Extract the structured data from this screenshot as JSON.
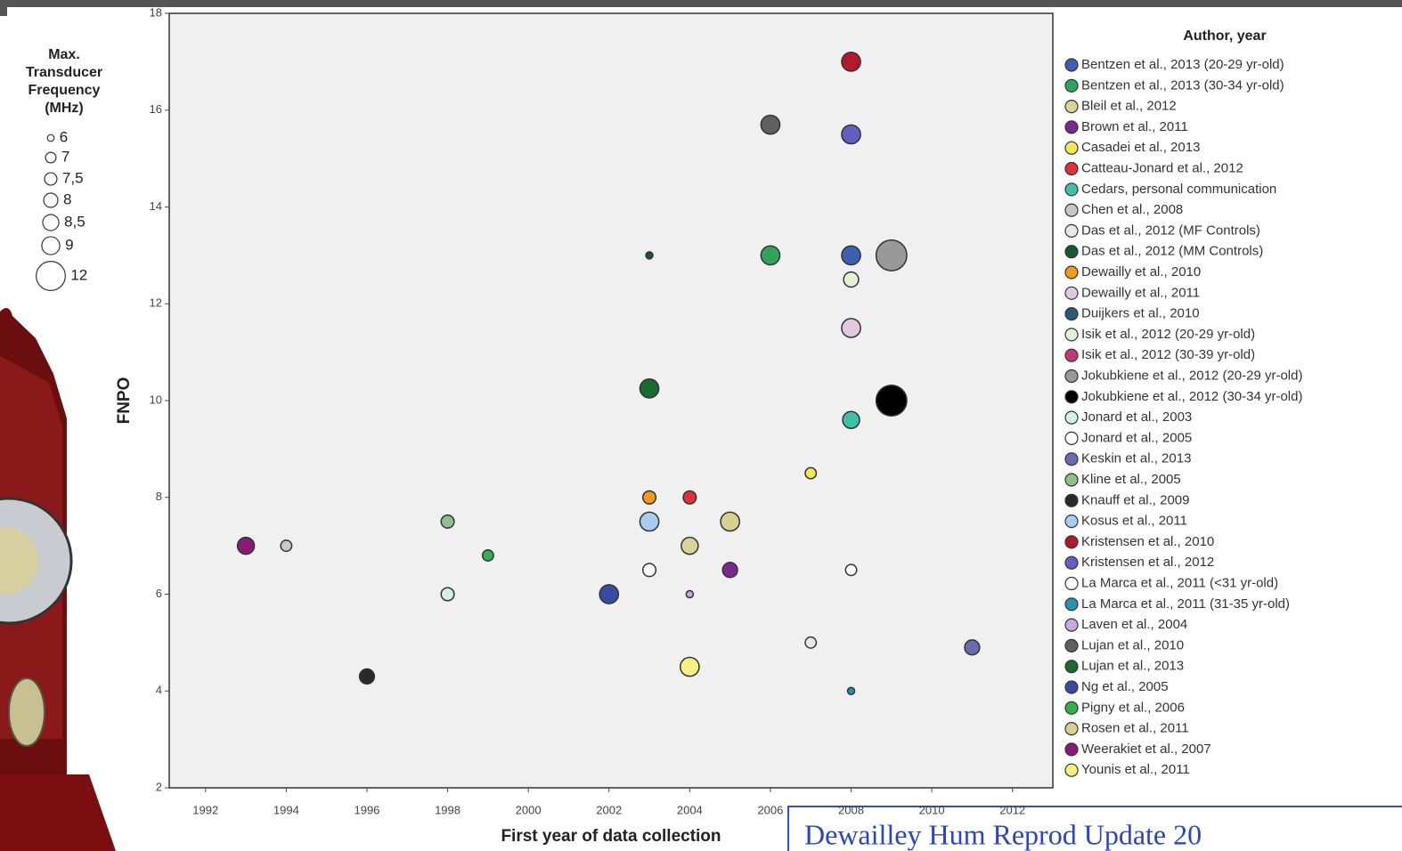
{
  "chart_data": {
    "type": "scatter",
    "x_label": "First year of data collection",
    "y_label": "FNPO",
    "xlim": [
      1991.1,
      2013
    ],
    "xticks": [
      1992,
      1994,
      1996,
      1998,
      2000,
      2002,
      2004,
      2006,
      2008,
      2010,
      2012
    ],
    "ylim": [
      2,
      18
    ],
    "yticks": [
      2,
      4,
      6,
      8,
      10,
      12,
      14,
      16,
      18
    ],
    "legend_title": "Author, year",
    "size_legend": {
      "title": [
        "Max.",
        "Transducer",
        "Frequency",
        "(MHz)"
      ],
      "values": [
        6,
        7,
        {
          "value": 7.5,
          "label": "7,5"
        },
        8,
        {
          "value": 8.5,
          "label": "8,5"
        },
        9,
        12
      ]
    },
    "series": [
      {
        "name": "Bentzen et al., 2013 (20-29 yr-old)",
        "color": "#3f5fb0",
        "x": [
          2008
        ],
        "y": [
          13
        ],
        "size": [
          9
        ]
      },
      {
        "name": "Bentzen et al., 2013 (30-34 yr-old)",
        "color": "#2fa35a",
        "x": [
          2006
        ],
        "y": [
          13
        ],
        "size": [
          9
        ]
      },
      {
        "name": "Bleil et al., 2012",
        "color": "#d9d49a",
        "x": [
          2004
        ],
        "y": [
          7
        ],
        "size": [
          8.5
        ]
      },
      {
        "name": "Brown et al., 2011",
        "color": "#7a2a8a",
        "x": [
          2005
        ],
        "y": [
          6.5
        ],
        "size": [
          8
        ]
      },
      {
        "name": "Casadei et al., 2013",
        "color": "#f2e85a",
        "x": [
          2007
        ],
        "y": [
          8.5
        ],
        "size": [
          7
        ]
      },
      {
        "name": "Catteau-Jonard et al., 2012",
        "color": "#e0303a",
        "x": [
          2004
        ],
        "y": [
          8
        ],
        "size": [
          7.5
        ]
      },
      {
        "name": "Cedars, personal communication",
        "color": "#40c0a8",
        "x": [
          2008
        ],
        "y": [
          9.6
        ],
        "size": [
          8.5
        ]
      },
      {
        "name": "Chen et al., 2008",
        "color": "#c8c8c8",
        "x": [
          1994
        ],
        "y": [
          7
        ],
        "size": [
          7
        ]
      },
      {
        "name": "Das et al., 2012 (MF Controls)",
        "color": "#e8e8e8",
        "x": [
          2007
        ],
        "y": [
          5
        ],
        "size": [
          7
        ]
      },
      {
        "name": "Das et al., 2012 (MM Controls)",
        "color": "#145a2a",
        "x": [
          2003
        ],
        "y": [
          13
        ],
        "size": [
          6
        ]
      },
      {
        "name": "Dewailly et al., 2010",
        "color": "#f09a20",
        "x": [
          2003
        ],
        "y": [
          8
        ],
        "size": [
          7.5
        ]
      },
      {
        "name": "Dewailly et al., 2011",
        "color": "#e0c8e0",
        "x": [
          2008
        ],
        "y": [
          11.5
        ],
        "size": [
          9
        ]
      },
      {
        "name": "Duijkers et al., 2010",
        "color": "#2a5a7a",
        "x": [],
        "y": [],
        "size": []
      },
      {
        "name": "Isik et al., 2012 (20-29 yr-old)",
        "color": "#e4f0d4",
        "x": [
          2008
        ],
        "y": [
          12.5
        ],
        "size": [
          8
        ]
      },
      {
        "name": "Isik et al., 2012 (30-39 yr-old)",
        "color": "#c03a7a",
        "x": [],
        "y": [],
        "size": []
      },
      {
        "name": "Jokubkiene et al., 2012 (20-29 yr-old)",
        "color": "#999999",
        "x": [
          2009
        ],
        "y": [
          13
        ],
        "size": [
          12
        ]
      },
      {
        "name": "Jokubkiene et al., 2012 (30-34 yr-old)",
        "color": "#000000",
        "x": [
          2009
        ],
        "y": [
          10
        ],
        "size": [
          12
        ]
      },
      {
        "name": "Jonard et al., 2003",
        "color": "#d0f0e8",
        "x": [
          1998
        ],
        "y": [
          6
        ],
        "size": [
          7.5
        ]
      },
      {
        "name": "Jonard et al., 2005",
        "color": "#ffffff",
        "x": [
          2003
        ],
        "y": [
          6.5
        ],
        "size": [
          7.5
        ]
      },
      {
        "name": "Keskin et al., 2013",
        "color": "#6a6ab0",
        "x": [
          2011
        ],
        "y": [
          4.9
        ],
        "size": [
          8
        ]
      },
      {
        "name": "Kline et al., 2005",
        "color": "#8fc08a",
        "x": [
          1998
        ],
        "y": [
          7.5
        ],
        "size": [
          7.5
        ]
      },
      {
        "name": "Knauff et al., 2009",
        "color": "#2a2a2a",
        "x": [
          1996
        ],
        "y": [
          4.3
        ],
        "size": [
          8
        ]
      },
      {
        "name": "Kosus et al., 2011",
        "color": "#a8cdf0",
        "x": [
          2003
        ],
        "y": [
          7.5
        ],
        "size": [
          9
        ]
      },
      {
        "name": "Kristensen et al., 2010",
        "color": "#b01a2a",
        "x": [
          2008
        ],
        "y": [
          17
        ],
        "size": [
          9
        ]
      },
      {
        "name": "Kristensen et al., 2012",
        "color": "#6060c0",
        "x": [
          2008
        ],
        "y": [
          15.5
        ],
        "size": [
          9
        ]
      },
      {
        "name": "La Marca et al., 2011 (<31 yr-old)",
        "color": "#ffffff",
        "x": [
          2008
        ],
        "y": [
          6.5
        ],
        "size": [
          7
        ]
      },
      {
        "name": "La Marca et al., 2011 (31-35 yr-old)",
        "color": "#2a90b0",
        "x": [
          2008
        ],
        "y": [
          4
        ],
        "size": [
          6
        ]
      },
      {
        "name": "Laven et al., 2004",
        "color": "#c8a8e0",
        "x": [
          2004
        ],
        "y": [
          6
        ],
        "size": [
          6
        ]
      },
      {
        "name": "Lujan et al., 2010",
        "color": "#606060",
        "x": [
          2006
        ],
        "y": [
          15.7
        ],
        "size": [
          9
        ]
      },
      {
        "name": "Lujan et al., 2013",
        "color": "#1a6a30",
        "x": [
          2003
        ],
        "y": [
          10.25
        ],
        "size": [
          9
        ]
      },
      {
        "name": "Ng et al., 2005",
        "color": "#3a4aa0",
        "x": [
          2002
        ],
        "y": [
          6
        ],
        "size": [
          9
        ]
      },
      {
        "name": "Pigny et al., 2006",
        "color": "#30b050",
        "x": [
          1999
        ],
        "y": [
          6.8
        ],
        "size": [
          7
        ]
      },
      {
        "name": "Rosen et al., 2011",
        "color": "#d8d090",
        "x": [
          2005
        ],
        "y": [
          7.5
        ],
        "size": [
          9
        ]
      },
      {
        "name": "Weerakiet et al., 2007",
        "color": "#8a1a7a",
        "x": [
          1993
        ],
        "y": [
          7
        ],
        "size": [
          8.5
        ]
      },
      {
        "name": "Younis et al., 2011",
        "color": "#f8f080",
        "x": [
          2004
        ],
        "y": [
          4.5
        ],
        "size": [
          9
        ]
      }
    ]
  },
  "caption": "Dewailley Hum Reprod Update 20"
}
